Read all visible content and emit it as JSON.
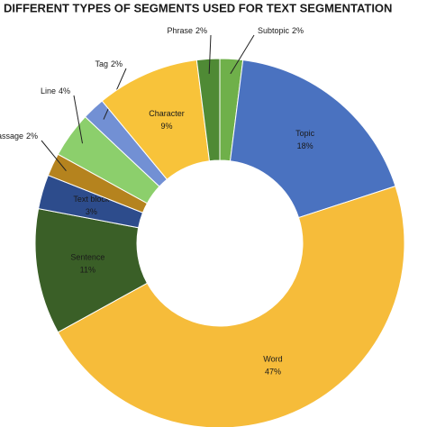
{
  "chart_data": {
    "type": "donut",
    "title": "DIFFERENT TYPES OF SEGMENTS USED FOR TEXT SEGMENTATION",
    "categories": [
      "Subtopic",
      "Topic",
      "Word",
      "Sentence",
      "Text block",
      "Passage",
      "Line",
      "Tag",
      "Character",
      "Phrase"
    ],
    "values": [
      2,
      18,
      47,
      11,
      3,
      2,
      4,
      2,
      9,
      2
    ],
    "value_labels": [
      "2%",
      "18%",
      "47%",
      "11%",
      "3%",
      "2%",
      "4%",
      "2%",
      "9%",
      "2%"
    ],
    "colors": [
      "#6fb04a",
      "#4a72c0",
      "#f6bc3a",
      "#3a5f27",
      "#2d4c8c",
      "#b5831e",
      "#8ccf6c",
      "#7290d4",
      "#f8c33a",
      "#4f8a35"
    ]
  }
}
